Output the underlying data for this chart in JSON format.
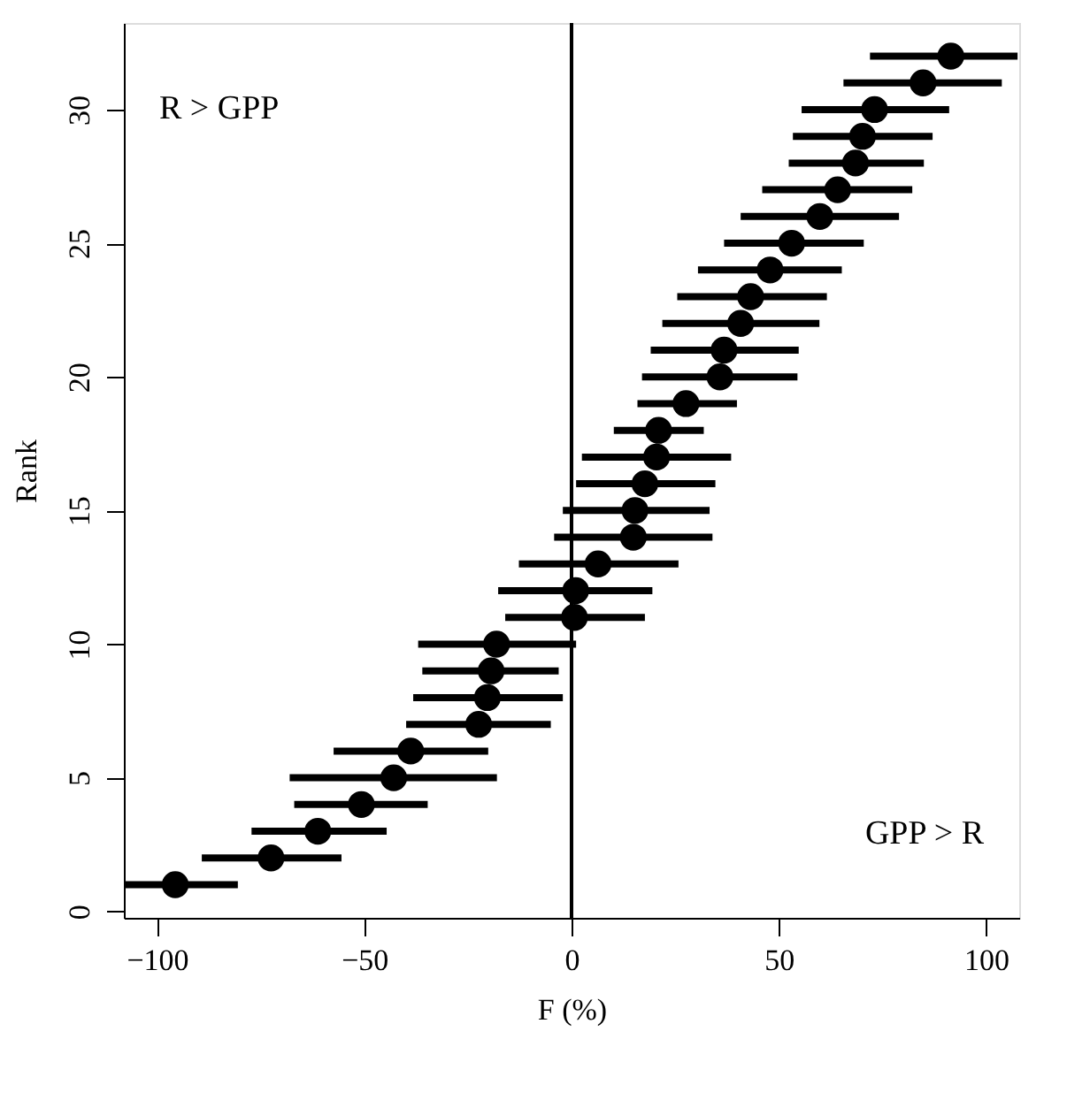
{
  "chart_data": {
    "type": "scatter",
    "xlabel": "F (%)",
    "ylabel": "Rank",
    "x": [
      -95.6,
      -72.5,
      -61.2,
      -50.7,
      -42.9,
      -38.8,
      -22.4,
      -20.3,
      -19.4,
      -18.1,
      0.7,
      1,
      6.4,
      14.9,
      15.3,
      17.7,
      20.5,
      21,
      27.6,
      35.8,
      36.8,
      40.8,
      43.2,
      47.9,
      53.1,
      59.9,
      64.2,
      68.5,
      70.2,
      73.1,
      84.8,
      91.5
    ],
    "values": [
      1,
      2,
      3,
      4,
      5,
      6,
      7,
      8,
      9,
      10,
      11,
      12,
      13,
      14,
      15,
      16,
      17,
      18,
      19,
      20,
      21,
      22,
      23,
      24,
      25,
      26,
      27,
      28,
      29,
      30,
      31,
      32
    ],
    "xerrors": [
      [
        -108,
        -80.5
      ],
      [
        -89.2,
        -55.5
      ],
      [
        -77.2,
        -44.6
      ],
      [
        -66.9,
        -34.7
      ],
      [
        -68,
        -18
      ],
      [
        -57.4,
        -20.1
      ],
      [
        -39.9,
        -5
      ],
      [
        -38.2,
        -2.1
      ],
      [
        -36,
        -3.1
      ],
      [
        -37,
        1.1
      ],
      [
        -16,
        17.7
      ],
      [
        -17.7,
        19.5
      ],
      [
        -12.7,
        25.8
      ],
      [
        -4.2,
        34
      ],
      [
        -2.1,
        33.3
      ],
      [
        1.1,
        34.7
      ],
      [
        2.5,
        38.5
      ],
      [
        10.2,
        31.9
      ],
      [
        15.9,
        39.9
      ],
      [
        17,
        54.5
      ],
      [
        19.1,
        54.8
      ],
      [
        21.9,
        59.8
      ],
      [
        25.5,
        61.6
      ],
      [
        30.5,
        65.2
      ],
      [
        36.8,
        70.5
      ],
      [
        40.8,
        79
      ],
      [
        46,
        82.2
      ],
      [
        52.4,
        85
      ],
      [
        53.4,
        87.1
      ],
      [
        55.5,
        91.1
      ],
      [
        65.6,
        103.8
      ],
      [
        72,
        107.6
      ]
    ],
    "color": "#000000",
    "marker": "circle",
    "grid": false,
    "xlim": [
      -108,
      108
    ],
    "ylim": [
      -0.24,
      33.24
    ],
    "xticks": [
      -100,
      -50,
      0,
      50,
      100
    ],
    "yticks": [
      0,
      5,
      10,
      15,
      20,
      25,
      30
    ],
    "ref_lines": [
      {
        "axis": "x",
        "value": 0,
        "color": "#000000"
      }
    ],
    "annotations": [
      "R > GPP",
      "GPP > R"
    ]
  }
}
